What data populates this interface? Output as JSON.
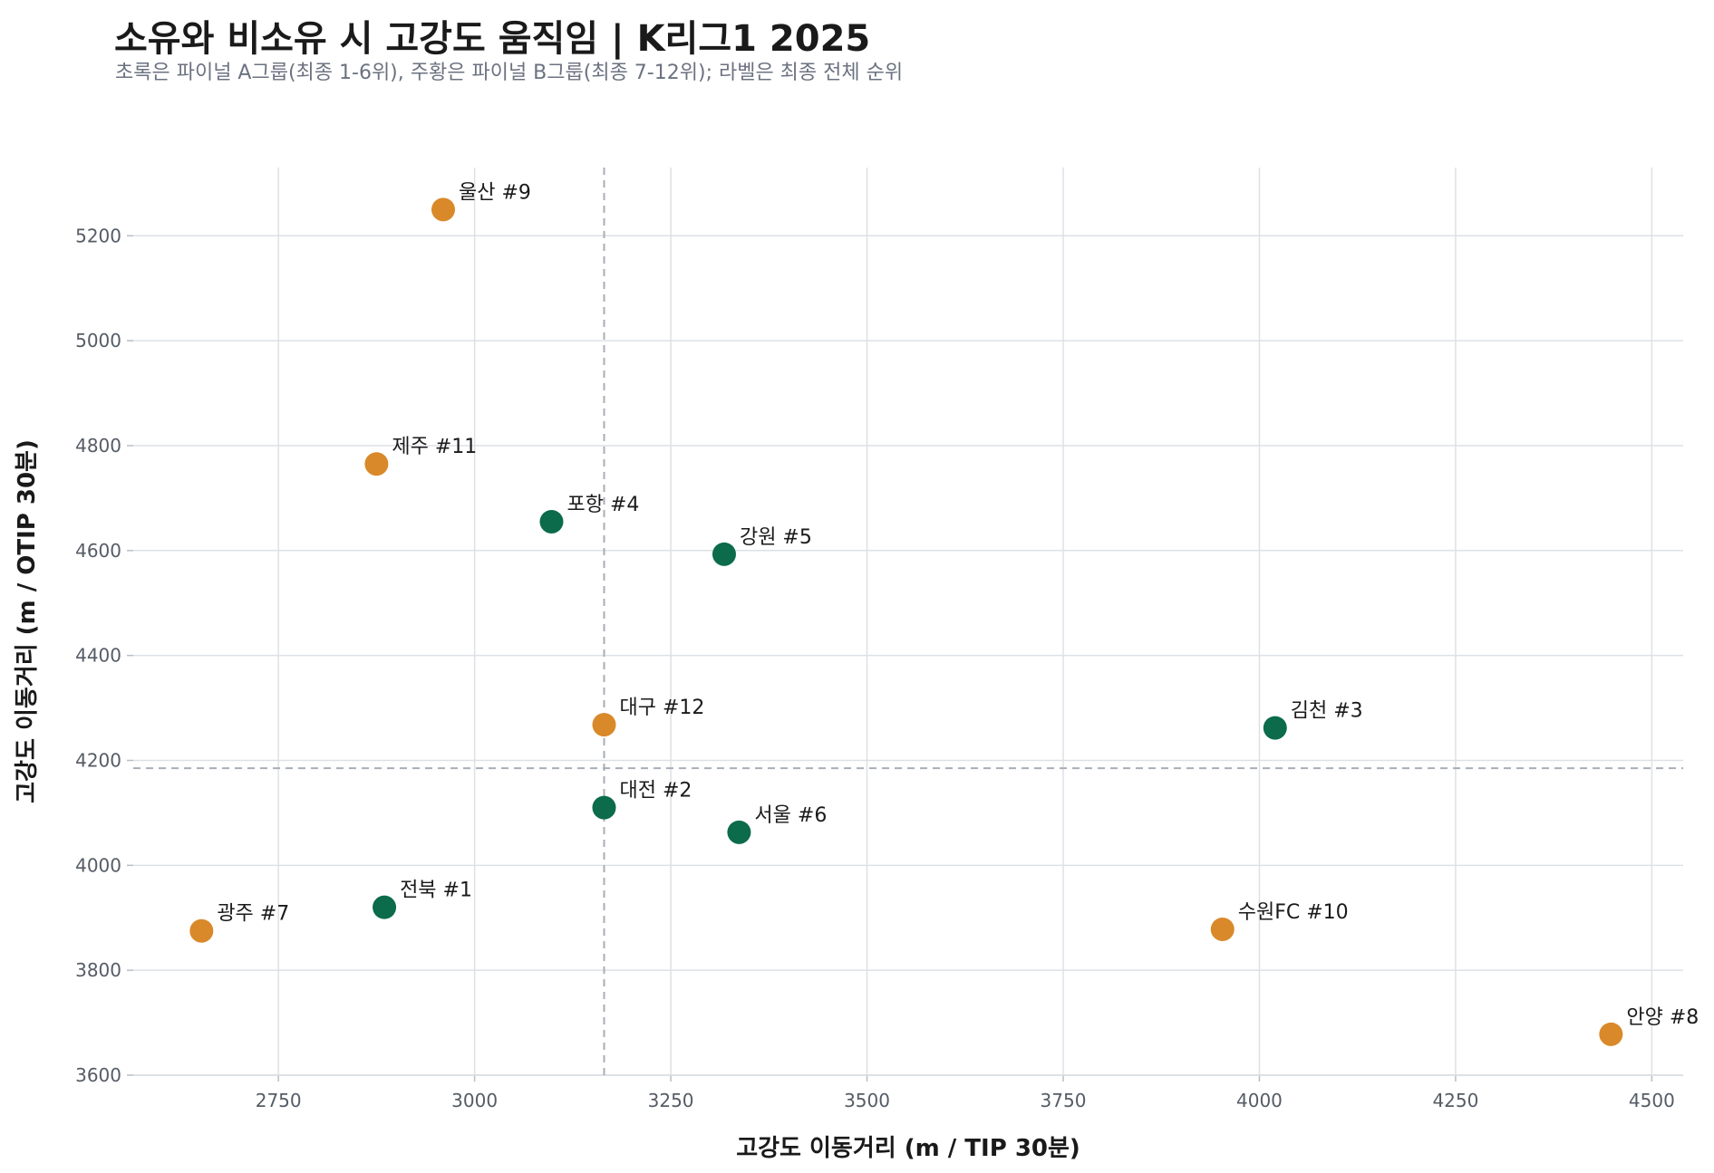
{
  "title": "소유와 비소유 시 고강도 움직임 | K리그1 2025",
  "subtitle": "초록은 파이널 A그룹(최종 1-6위), 주황은 파이널 B그룹(최종 7-12위); 라벨은 최종 전체 순위",
  "colors": {
    "group_a": "#0b6b4a",
    "group_b": "#d9892a",
    "grid": "#dde1e6",
    "refline": "#a9aeb6"
  },
  "chart_data": {
    "type": "scatter",
    "xlabel": "고강도 이동거리 (m / TIP 30분)",
    "ylabel": "고강도 이동거리 (m / OTIP 30분)",
    "xlim": [
      2565,
      4540
    ],
    "ylim": [
      3600,
      5330
    ],
    "xticks": [
      2750,
      3000,
      3250,
      3500,
      3750,
      4000,
      4250,
      4500
    ],
    "yticks": [
      3600,
      3800,
      4000,
      4200,
      4400,
      4600,
      4800,
      5000,
      5200
    ],
    "grid": true,
    "reference_lines": {
      "x": 3165,
      "y": 4185
    },
    "points": [
      {
        "label": "울산 #9",
        "x": 2960,
        "y": 5250,
        "group": "B"
      },
      {
        "label": "제주 #11",
        "x": 2875,
        "y": 4765,
        "group": "B"
      },
      {
        "label": "포항 #4",
        "x": 3098,
        "y": 4655,
        "group": "A"
      },
      {
        "label": "강원 #5",
        "x": 3318,
        "y": 4593,
        "group": "A"
      },
      {
        "label": "대구 #12",
        "x": 3165,
        "y": 4268,
        "group": "B"
      },
      {
        "label": "김천 #3",
        "x": 4020,
        "y": 4262,
        "group": "A"
      },
      {
        "label": "대전 #2",
        "x": 3165,
        "y": 4110,
        "group": "A"
      },
      {
        "label": "서울 #6",
        "x": 3337,
        "y": 4063,
        "group": "A"
      },
      {
        "label": "전북 #1",
        "x": 2885,
        "y": 3920,
        "group": "A"
      },
      {
        "label": "광주 #7",
        "x": 2652,
        "y": 3875,
        "group": "B"
      },
      {
        "label": "수원FC #10",
        "x": 3953,
        "y": 3878,
        "group": "B"
      },
      {
        "label": "안양 #8",
        "x": 4448,
        "y": 3678,
        "group": "B"
      }
    ]
  }
}
